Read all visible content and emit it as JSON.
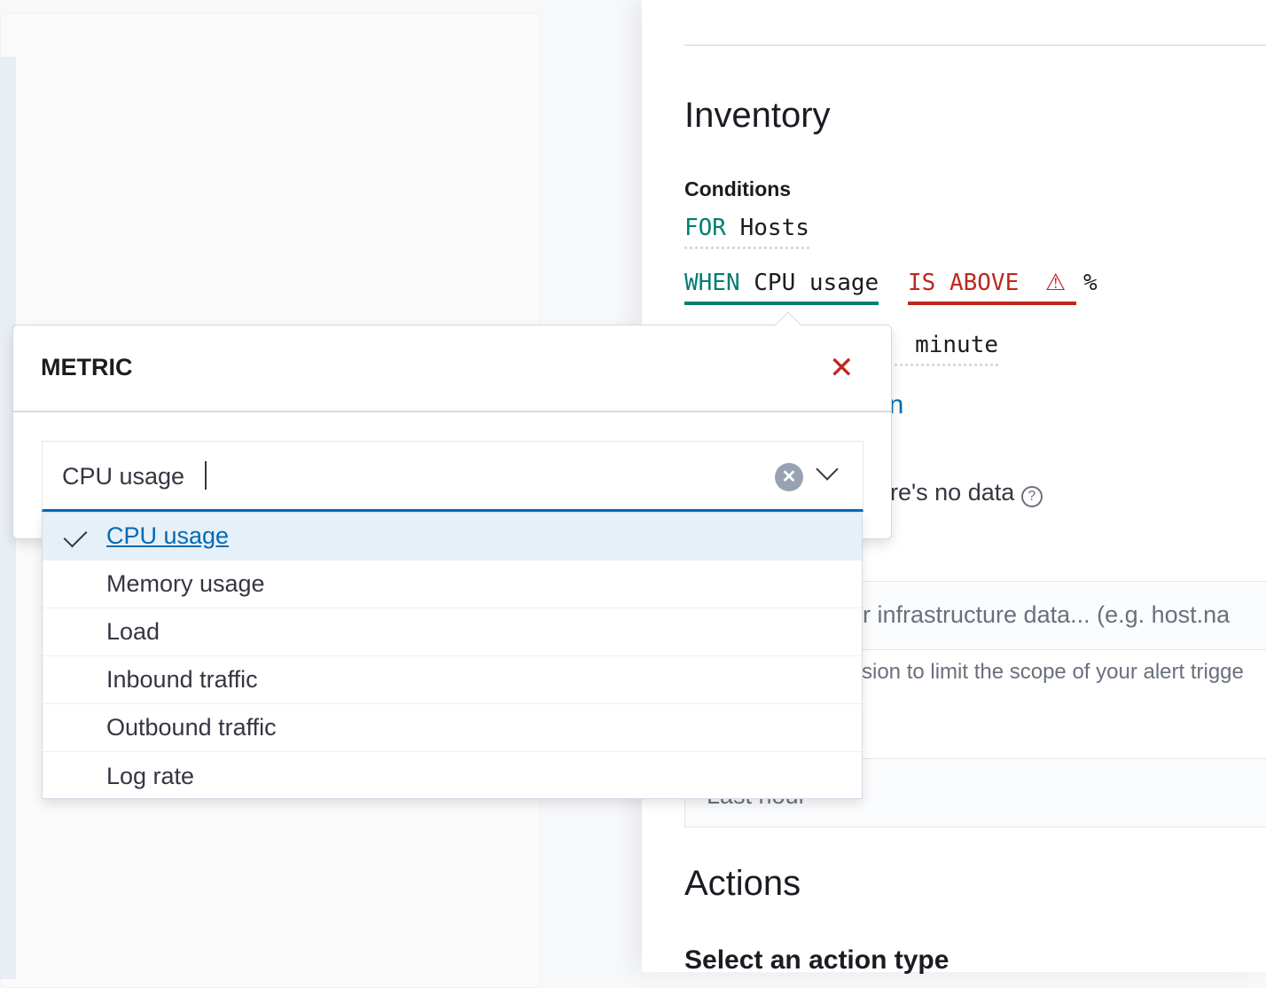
{
  "flyout": {
    "title": "Inventory",
    "conditions_label": "Conditions",
    "for_keyword": "FOR",
    "for_value": "Hosts",
    "when_keyword": "WHEN",
    "when_value": "CPU usage",
    "comparator": "IS ABOVE",
    "unit": "%",
    "duration_unit": "minute",
    "link_fragment": "on",
    "no_data_fragment": "re's no data",
    "filter_placeholder_fragment": "r infrastructure data... (e.g. host.na",
    "filter_help_fragment": "sion to limit the scope of your alert trigge",
    "time_value": "Last hour",
    "actions_title": "Actions",
    "action_type_label": "Select an action type"
  },
  "popover": {
    "title": "METRIC",
    "input_value": "CPU usage",
    "options": [
      {
        "label": "CPU usage",
        "selected": true
      },
      {
        "label": "Memory usage"
      },
      {
        "label": "Load"
      },
      {
        "label": "Inbound traffic"
      },
      {
        "label": "Outbound traffic"
      },
      {
        "label": "Log rate"
      }
    ]
  },
  "colors": {
    "accent": "#006bb4",
    "keyword": "#017d73",
    "error": "#bd271e"
  }
}
